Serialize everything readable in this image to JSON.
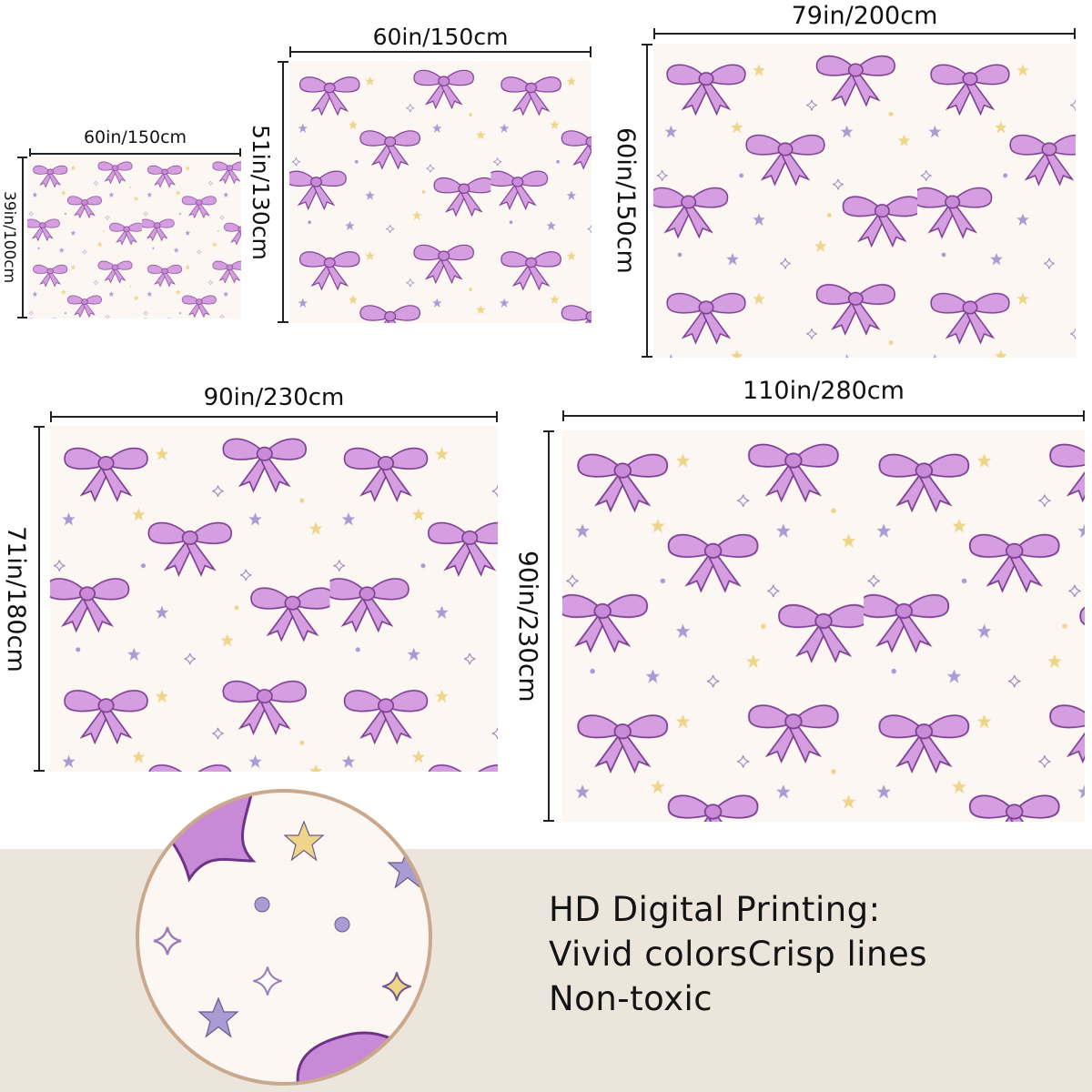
{
  "sizes": [
    {
      "width_label": "60in/150cm",
      "height_label": "39in/100cm"
    },
    {
      "width_label": "60in/150cm",
      "height_label": "51in/130cm"
    },
    {
      "width_label": "79in/200cm",
      "height_label": "60in/150cm"
    },
    {
      "width_label": "90in/230cm",
      "height_label": "71in/180cm"
    },
    {
      "width_label": "110in/280cm",
      "height_label": "90in/230cm"
    }
  ],
  "features": {
    "line1": "HD Digital Printing:",
    "line2": "Vivid colorsCrisp lines",
    "line3": "Non-toxic"
  },
  "colors": {
    "background": "#fcf7f2",
    "bow_fill": "#d49ee0",
    "bow_stroke": "#7e3f93",
    "star_purple": "#a99bd4",
    "star_yellow": "#efd58a",
    "band": "#ebe5dc",
    "circle_border": "#c9a88e"
  },
  "pattern_icons": [
    "bow-icon",
    "star-icon",
    "sparkle-icon",
    "dot-icon"
  ]
}
